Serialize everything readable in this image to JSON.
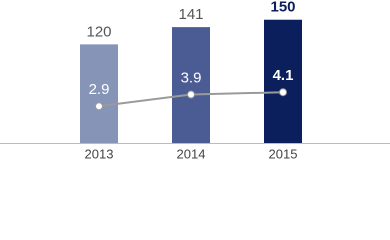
{
  "chart_data": {
    "type": "bar-line",
    "categories": [
      "2013",
      "2014",
      "2015"
    ],
    "series": [
      {
        "name": null,
        "type": "bar",
        "colors": [
          "#8694b8",
          "#4a5c93",
          "#0b1f5c"
        ],
        "values": [
          120,
          141,
          150
        ]
      },
      {
        "name": null,
        "type": "line",
        "axis": "y2",
        "color": "#9a9a9a",
        "values": [
          2.9,
          3.9,
          4.1
        ]
      }
    ],
    "ylim": [
      0,
      174
    ],
    "y2lim": [
      -0.25,
      12
    ]
  }
}
